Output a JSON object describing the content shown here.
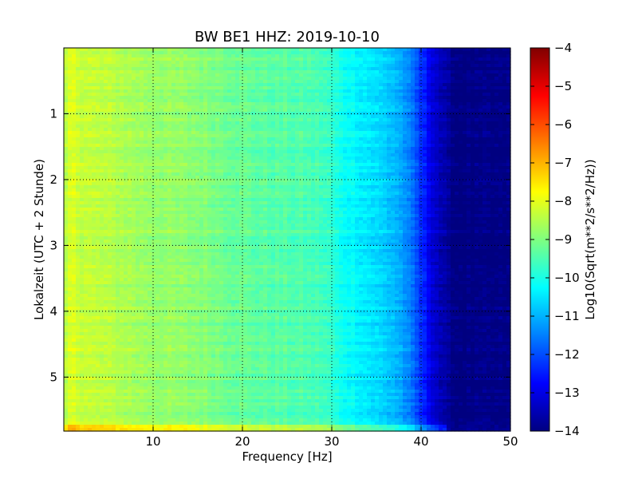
{
  "chart_data": {
    "type": "heatmap",
    "title": "BW BE1 HHZ: 2019-10-10",
    "xlabel": "Frequency [Hz]",
    "ylabel": "Lokalzeit (UTC + 2 Stunde)",
    "xlim": [
      0,
      50
    ],
    "ylim": [
      5.82,
      0
    ],
    "x_ticks": [
      10,
      20,
      30,
      40,
      50
    ],
    "y_ticks": [
      1,
      2,
      3,
      4,
      5
    ],
    "grid": true,
    "colormap": "jet",
    "colorbar": {
      "label": "Log10(Sqrt(m**2/s**2/Hz))",
      "range": [
        -14,
        -4
      ],
      "ticks": [
        -4,
        -5,
        -6,
        -7,
        -8,
        -9,
        -10,
        -11,
        -12,
        -13,
        -14
      ]
    },
    "frequency_profile": {
      "frequency_hz": [
        0,
        1,
        2,
        4,
        6,
        9,
        12,
        15,
        18,
        21,
        24,
        27,
        29,
        30,
        31,
        33,
        35,
        37,
        38,
        39,
        40,
        41,
        42,
        43,
        44,
        50
      ],
      "log10_amplitude": [
        -8.6,
        -8.0,
        -8.3,
        -8.4,
        -8.5,
        -8.7,
        -8.8,
        -8.9,
        -9.1,
        -9.3,
        -9.4,
        -9.5,
        -9.6,
        -9.8,
        -10.1,
        -10.3,
        -10.6,
        -10.9,
        -11.2,
        -11.7,
        -12.3,
        -12.9,
        -13.4,
        -13.8,
        -14.0,
        -14.0
      ]
    },
    "time_band_anomalies": [
      {
        "hour": 5.78,
        "delta": 0.9,
        "max_freq_hz": 43
      }
    ]
  }
}
